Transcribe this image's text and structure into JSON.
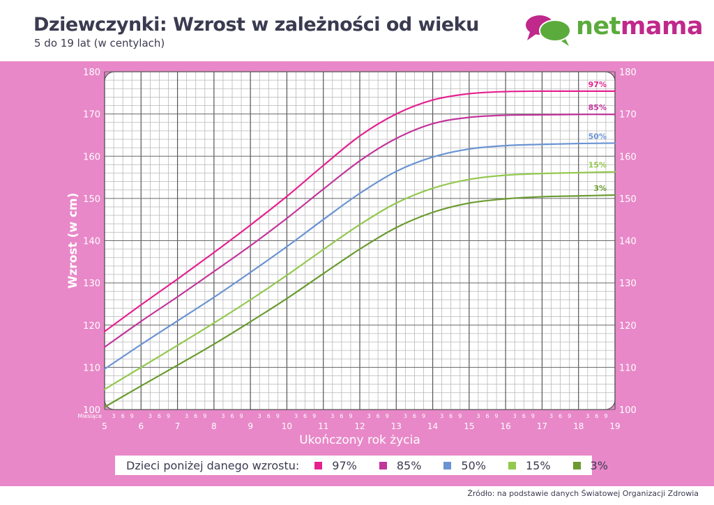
{
  "header": {
    "title": "Dziewczynki: Wzrost w zależności od wieku",
    "subtitle": "5 do 19 lat (w centylach)"
  },
  "logo": {
    "text_part1": "net",
    "text_part2": "mama",
    "icon": "speech-bubbles-icon",
    "colors": {
      "green": "#5bab3c",
      "magenta": "#c0288b"
    }
  },
  "legend": {
    "label": "Dzieci poniżej danego wzrostu:",
    "items": [
      {
        "label": "97%",
        "color": "#e5218f"
      },
      {
        "label": "85%",
        "color": "#c2359b"
      },
      {
        "label": "50%",
        "color": "#6a93d2"
      },
      {
        "label": "15%",
        "color": "#93c84e"
      },
      {
        "label": "3%",
        "color": "#6a9a2f"
      }
    ]
  },
  "source": "Źródło: na podstawie danych Światowej Organizacji Zdrowia",
  "chart_data": {
    "type": "line",
    "xlabel": "Ukończony rok życia",
    "ylabel": "Wzrost (w cm)",
    "xlim": [
      5,
      19
    ],
    "ylim": [
      100,
      180
    ],
    "x_ticks": [
      5,
      6,
      7,
      8,
      9,
      10,
      11,
      12,
      13,
      14,
      15,
      16,
      17,
      18,
      19
    ],
    "y_ticks": [
      100,
      110,
      120,
      130,
      140,
      150,
      160,
      170,
      180
    ],
    "month_label": "Miesiące",
    "month_ticks": [
      "3",
      "6",
      "9"
    ],
    "grid": true,
    "x": [
      5,
      6,
      7,
      8,
      9,
      10,
      11,
      12,
      13,
      14,
      15,
      16,
      17,
      18,
      19
    ],
    "series": [
      {
        "name": "97%",
        "color": "#e5218f",
        "values": [
          118.5,
          124.8,
          130.9,
          137.2,
          143.7,
          150.5,
          157.8,
          164.8,
          170.0,
          173.3,
          174.8,
          175.3,
          175.4,
          175.4,
          175.4
        ]
      },
      {
        "name": "85%",
        "color": "#c2359b",
        "values": [
          114.8,
          120.9,
          126.7,
          132.7,
          138.8,
          145.3,
          152.2,
          158.9,
          164.2,
          167.7,
          169.2,
          169.7,
          169.8,
          169.9,
          169.9
        ]
      },
      {
        "name": "50%",
        "color": "#6a93d2",
        "values": [
          109.6,
          115.4,
          121.0,
          126.6,
          132.5,
          138.6,
          145.0,
          151.2,
          156.4,
          159.8,
          161.7,
          162.5,
          162.8,
          163.0,
          163.1
        ]
      },
      {
        "name": "15%",
        "color": "#93c84e",
        "values": [
          104.8,
          110.0,
          115.2,
          120.5,
          126.0,
          131.8,
          137.9,
          143.8,
          148.9,
          152.4,
          154.5,
          155.5,
          155.9,
          156.1,
          156.3
        ]
      },
      {
        "name": "3%",
        "color": "#6a9a2f",
        "values": [
          100.6,
          105.6,
          110.5,
          115.5,
          120.8,
          126.3,
          132.2,
          138.0,
          143.1,
          146.7,
          148.9,
          149.9,
          150.4,
          150.6,
          150.8
        ]
      }
    ]
  }
}
